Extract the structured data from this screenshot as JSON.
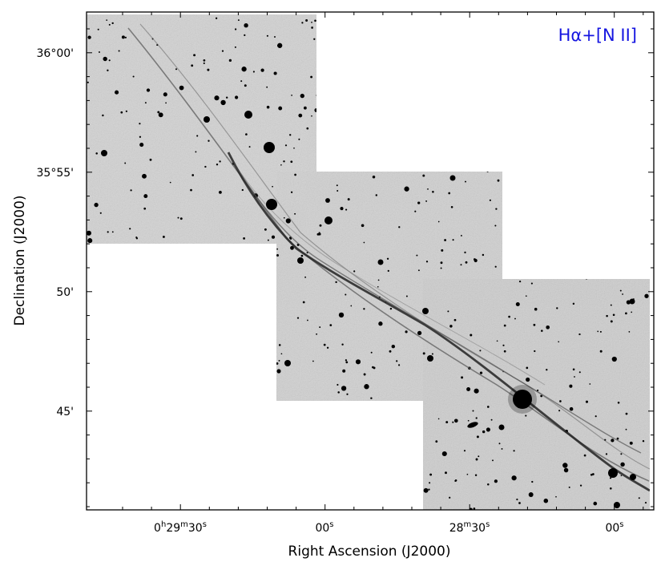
{
  "panel_label": "Hα+[N II]",
  "colors": {
    "panel_label": "#1515e0",
    "sky": "#cfcfcf",
    "frame": "#000000"
  },
  "x_axis": {
    "title": "Right Ascension (J2000)",
    "ticks": [
      {
        "main": "0",
        "u1": "h",
        "n2": "29",
        "u2": "m",
        "n3": "30",
        "u3": "s"
      },
      {
        "main": "00",
        "u1": "s"
      },
      {
        "main": "28",
        "u1": "m",
        "n2": "30",
        "u2": "s"
      },
      {
        "main": "00",
        "u1": "s"
      }
    ]
  },
  "y_axis": {
    "title": "Declination (J2000)",
    "ticks": [
      "36°00'",
      "35°55'",
      "50'",
      "45'"
    ]
  }
}
